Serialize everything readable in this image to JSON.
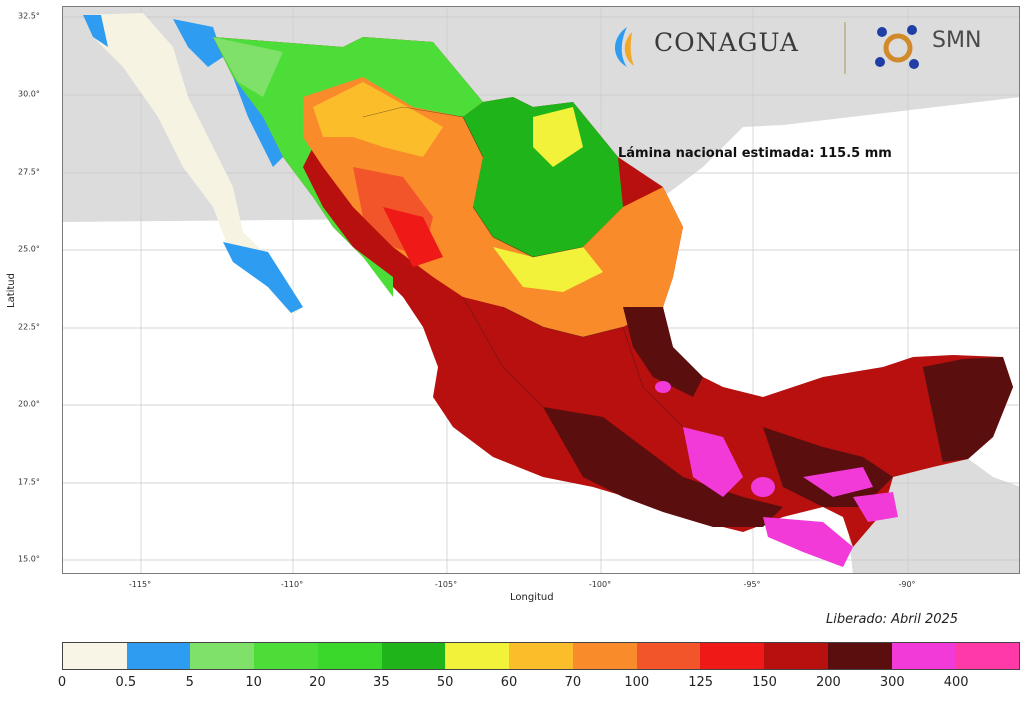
{
  "chart_data": {
    "type": "heatmap",
    "title": "",
    "xlabel": "Longitud",
    "ylabel": "Latitud",
    "x_ticks": [
      "-115°",
      "-110°",
      "-105°",
      "-100°",
      "-95°",
      "-90°"
    ],
    "y_ticks": [
      "32.5°",
      "30.0°",
      "27.5°",
      "25.0°",
      "22.5°",
      "20.0°",
      "17.5°",
      "15.0°"
    ],
    "xlim": [
      -118.5,
      -86.5
    ],
    "ylim": [
      14.5,
      32.8
    ],
    "annotation": "Lámina nacional estimada: 115.5 mm",
    "released": "Liberado: Abril 2025",
    "legend_breaks": [
      "0",
      "0.5",
      "5",
      "10",
      "20",
      "35",
      "50",
      "60",
      "70",
      "100",
      "125",
      "150",
      "200",
      "300",
      "400"
    ],
    "legend_colors": [
      "#f8f5e6",
      "#2e9cf0",
      "#7fe06a",
      "#4cdd38",
      "#3ad82a",
      "#1fb51a",
      "#f2f23a",
      "#fbbd2a",
      "#f98b2a",
      "#f2552a",
      "#ef1a17",
      "#b80f0f",
      "#5a0e0e",
      "#f23ad8",
      "#ff3aa8"
    ]
  },
  "logos": {
    "conagua": "CONAGUA",
    "smn": "SMN"
  }
}
